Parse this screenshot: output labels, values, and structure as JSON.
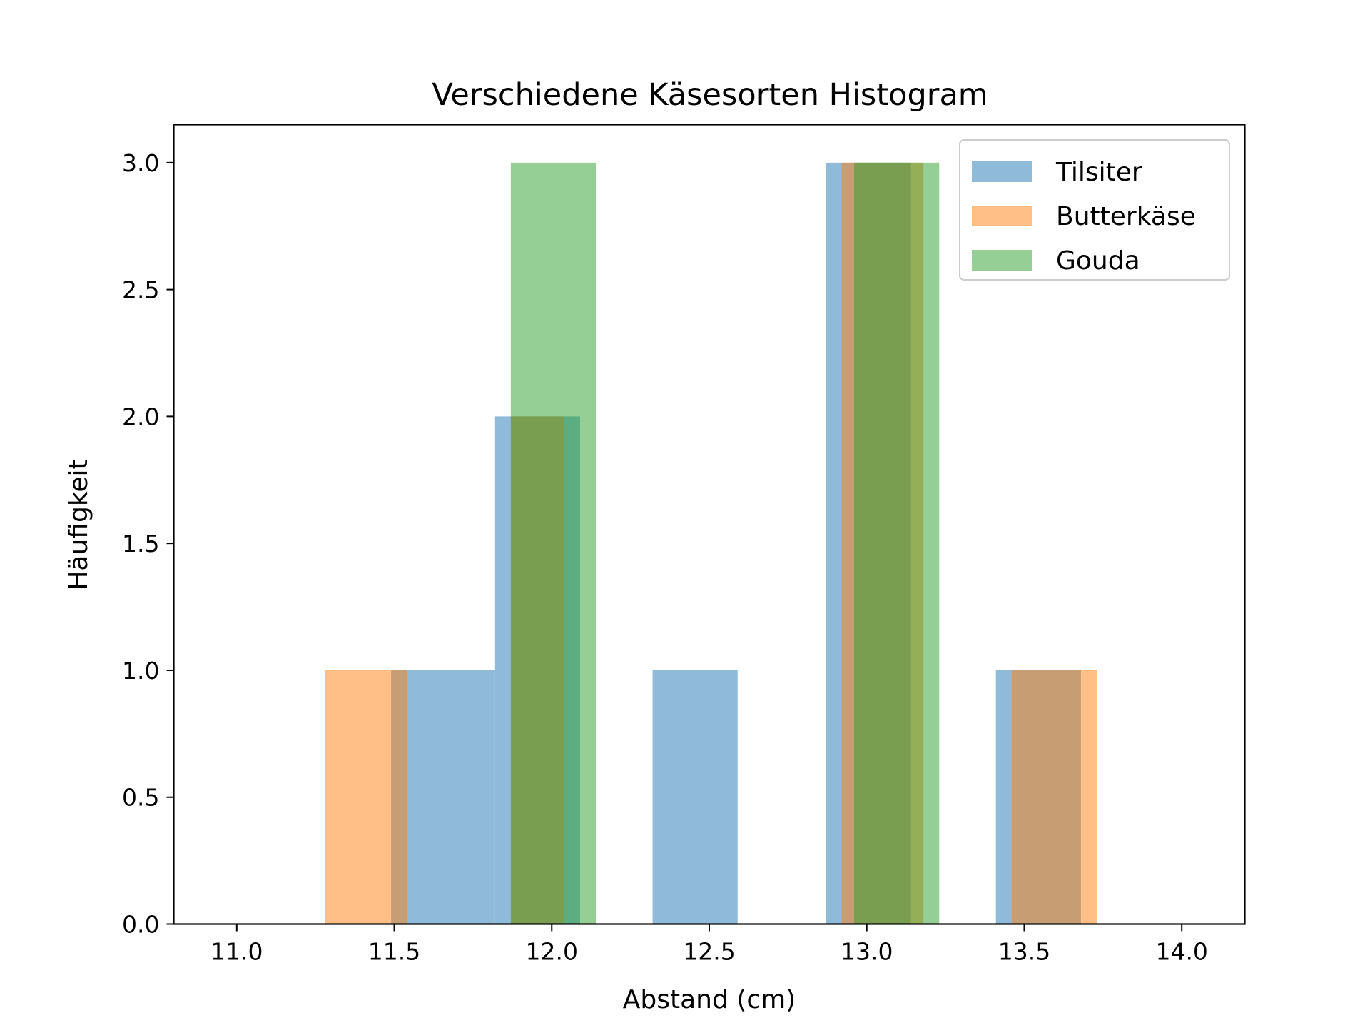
{
  "chart_data": {
    "type": "bar",
    "title": "Verschiedene Käsesorten Histogram",
    "xlabel": "Abstand (cm)",
    "ylabel": "Häufigkeit",
    "xlim": [
      10.8,
      14.2
    ],
    "ylim": [
      0,
      3.15
    ],
    "xticks": [
      11.0,
      11.5,
      12.0,
      12.5,
      13.0,
      13.5,
      14.0
    ],
    "xtick_labels": [
      "11.0",
      "11.5",
      "12.0",
      "12.5",
      "13.0",
      "13.5",
      "14.0"
    ],
    "yticks": [
      0.0,
      0.5,
      1.0,
      1.5,
      2.0,
      2.5,
      3.0
    ],
    "ytick_labels": [
      "0.0",
      "0.5",
      "1.0",
      "1.5",
      "2.0",
      "2.5",
      "3.0"
    ],
    "grid": false,
    "legend_position": "top-right",
    "bar_opacity": 0.5,
    "series": [
      {
        "name": "Tilsiter",
        "color": "#1f77b4",
        "bins": [
          {
            "x0": 11.49,
            "x1": 11.54,
            "count": 1
          },
          {
            "x0": 11.54,
            "x1": 11.82,
            "count": 1
          },
          {
            "x0": 11.82,
            "x1": 12.09,
            "count": 2
          },
          {
            "x0": 12.32,
            "x1": 12.59,
            "count": 1
          },
          {
            "x0": 12.87,
            "x1": 13.14,
            "count": 3
          },
          {
            "x0": 13.41,
            "x1": 13.68,
            "count": 1
          }
        ]
      },
      {
        "name": "Butterkäse",
        "color": "#ff7f0e",
        "bins": [
          {
            "x0": 11.28,
            "x1": 11.54,
            "count": 1
          },
          {
            "x0": 11.87,
            "x1": 12.04,
            "count": 2
          },
          {
            "x0": 12.92,
            "x1": 13.18,
            "count": 3
          },
          {
            "x0": 13.46,
            "x1": 13.73,
            "count": 1
          }
        ]
      },
      {
        "name": "Gouda",
        "color": "#2ca02c",
        "bins": [
          {
            "x0": 11.87,
            "x1": 12.14,
            "count": 3
          },
          {
            "x0": 12.96,
            "x1": 13.23,
            "count": 3
          }
        ]
      }
    ]
  }
}
